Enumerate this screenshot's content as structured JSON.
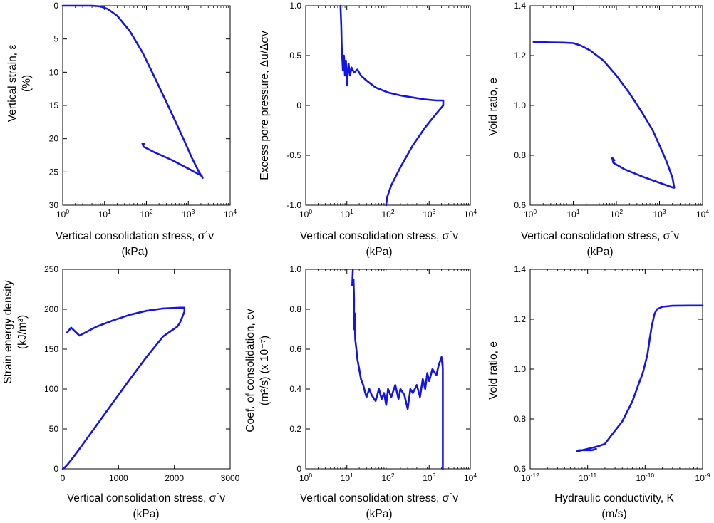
{
  "colors": {
    "series": "#1414e6",
    "axis": "#000000",
    "background": "#ffffff"
  },
  "chart_data": [
    {
      "type": "line",
      "xscale": "log",
      "xlim": [
        1,
        10000
      ],
      "ylim": [
        30,
        0
      ],
      "yinverted": true,
      "ylabel": "Vertical strain, ε",
      "ylabel2": "(%)",
      "xlabel": "Vertical consolidation stress, σ´v",
      "xlabel2": "(kPa)",
      "xticks": [
        1,
        10,
        100,
        1000,
        10000
      ],
      "xtick_labels": [
        {
          "b": "10",
          "e": "0"
        },
        {
          "b": "10",
          "e": "1"
        },
        {
          "b": "10",
          "e": "2"
        },
        {
          "b": "10",
          "e": "3"
        },
        {
          "b": "10",
          "e": "4"
        }
      ],
      "yticks": [
        0,
        5,
        10,
        15,
        20,
        25,
        30
      ],
      "ytick_labels": [
        "0",
        "5",
        "10",
        "15",
        "20",
        "25",
        "30"
      ],
      "series": [
        {
          "x": [
            1,
            2,
            5,
            8,
            12,
            20,
            40,
            80,
            150,
            300,
            500,
            800,
            1200,
            1800,
            2200,
            2100,
            1000,
            400,
            150,
            85,
            80,
            90
          ],
          "y": [
            0,
            0,
            0,
            0.1,
            0.5,
            1.5,
            3.8,
            7,
            10.5,
            14.5,
            17.5,
            20.3,
            22.8,
            25,
            25.9,
            25.6,
            24.5,
            23.2,
            22,
            21.2,
            20.7,
            20.8
          ]
        }
      ]
    },
    {
      "type": "line",
      "xscale": "log",
      "xlim": [
        1,
        10000
      ],
      "ylim": [
        -1,
        1
      ],
      "ylabel": "Excess pore pressure, Δu/Δσv",
      "xlabel": "Vertical consolidation stress, σ´v",
      "xlabel2": "(kPa)",
      "xticks": [
        1,
        10,
        100,
        1000,
        10000
      ],
      "xtick_labels": [
        {
          "b": "10",
          "e": "0"
        },
        {
          "b": "10",
          "e": "1"
        },
        {
          "b": "10",
          "e": "2"
        },
        {
          "b": "10",
          "e": "3"
        },
        {
          "b": "10",
          "e": "4"
        }
      ],
      "yticks": [
        -1,
        -0.5,
        0,
        0.5,
        1
      ],
      "ytick_labels": [
        "-1.0",
        "-0.5",
        "0",
        "0.5",
        "1.0"
      ],
      "series": [
        {
          "x": [
            7,
            7.3,
            7.5,
            7.8,
            8,
            8.5,
            9,
            9.5,
            10,
            11,
            12,
            13,
            15,
            18,
            22,
            30,
            50,
            100,
            200,
            400,
            800,
            1500,
            2200,
            2200,
            1500,
            800,
            400,
            200,
            120,
            95,
            90
          ],
          "y": [
            1.0,
            0.8,
            0.6,
            0.45,
            0.35,
            0.5,
            0.3,
            0.45,
            0.2,
            0.42,
            0.3,
            0.38,
            0.33,
            0.36,
            0.3,
            0.25,
            0.18,
            0.13,
            0.1,
            0.08,
            0.06,
            0.05,
            0.05,
            0.0,
            -0.08,
            -0.22,
            -0.4,
            -0.62,
            -0.8,
            -0.92,
            -1.0
          ]
        }
      ]
    },
    {
      "type": "line",
      "xscale": "log",
      "xlim": [
        1,
        10000
      ],
      "ylim": [
        0.6,
        1.4
      ],
      "ylabel": "Void ratio, e",
      "xlabel": "Vertical consolidation stress, σ´v",
      "xlabel2": "(kPa)",
      "xticks": [
        1,
        10,
        100,
        1000,
        10000
      ],
      "xtick_labels": [
        {
          "b": "10",
          "e": "0"
        },
        {
          "b": "10",
          "e": "1"
        },
        {
          "b": "10",
          "e": "2"
        },
        {
          "b": "10",
          "e": "3"
        },
        {
          "b": "10",
          "e": "4"
        }
      ],
      "yticks": [
        0.6,
        0.8,
        1.0,
        1.2,
        1.4
      ],
      "ytick_labels": [
        "0.6",
        "0.8",
        "1.0",
        "1.2",
        "1.4"
      ],
      "series": [
        {
          "x": [
            1.2,
            3,
            6,
            10,
            15,
            25,
            50,
            100,
            200,
            400,
            700,
            1000,
            1500,
            2000,
            2200,
            2100,
            1000,
            400,
            150,
            85,
            80,
            90
          ],
          "y": [
            1.255,
            1.253,
            1.252,
            1.25,
            1.24,
            1.22,
            1.18,
            1.12,
            1.05,
            0.97,
            0.9,
            0.84,
            0.77,
            0.71,
            0.67,
            0.67,
            0.69,
            0.715,
            0.745,
            0.77,
            0.79,
            0.78
          ]
        }
      ]
    },
    {
      "type": "line",
      "xscale": "linear",
      "xlim": [
        0,
        3000
      ],
      "ylim": [
        0,
        250
      ],
      "ylabel": "Strain energy density",
      "ylabel2": "(kJ/m³)",
      "xlabel": "Vertical consolidation stress, σ´v",
      "xlabel2": "(kPa)",
      "xticks": [
        0,
        1000,
        2000,
        3000
      ],
      "xtick_labels": [
        "0",
        "1000",
        "2000",
        "3000"
      ],
      "yticks": [
        0,
        50,
        100,
        150,
        200,
        250
      ],
      "ytick_labels": [
        "0",
        "50",
        "100",
        "150",
        "200",
        "250"
      ],
      "series": [
        {
          "x": [
            0,
            10,
            40,
            80,
            150,
            300,
            600,
            900,
            1200,
            1500,
            1800,
            2050,
            2100,
            2180,
            2180,
            2100,
            1800,
            1500,
            1200,
            900,
            600,
            300,
            150,
            80
          ],
          "y": [
            0,
            0.5,
            2,
            5,
            11,
            25,
            54,
            83,
            112,
            140,
            166,
            178,
            183,
            197,
            202,
            202,
            201,
            198,
            193,
            186,
            178,
            167,
            177,
            171
          ]
        }
      ]
    },
    {
      "type": "line",
      "xscale": "log",
      "xlim": [
        1,
        10000
      ],
      "ylim": [
        0,
        1
      ],
      "ylabel": "Coef. of consolidation, cv",
      "ylabel2": "(m²/s) (x 10⁻⁷)",
      "xlabel": "Vertical consolidation stress, σ´v",
      "xlabel2": "(kPa)",
      "xticks": [
        1,
        10,
        100,
        1000,
        10000
      ],
      "xtick_labels": [
        {
          "b": "10",
          "e": "0"
        },
        {
          "b": "10",
          "e": "1"
        },
        {
          "b": "10",
          "e": "2"
        },
        {
          "b": "10",
          "e": "3"
        },
        {
          "b": "10",
          "e": "4"
        }
      ],
      "yticks": [
        0,
        0.2,
        0.4,
        0.6,
        0.8,
        1
      ],
      "ytick_labels": [
        "0",
        "0.2",
        "0.4",
        "0.6",
        "0.8",
        "1.0"
      ],
      "series": [
        {
          "x": [
            14,
            13.5,
            14.5,
            15,
            14.8,
            15.5,
            16,
            17,
            18,
            20,
            22,
            25,
            28,
            30,
            35,
            40,
            50,
            60,
            70,
            80,
            90,
            100,
            120,
            150,
            180,
            200,
            250,
            300,
            350,
            400,
            500,
            600,
            700,
            800,
            900,
            1000,
            1200,
            1500,
            1700,
            2000,
            2100,
            2100,
            2150,
            2150
          ],
          "y": [
            1.0,
            0.92,
            0.95,
            0.85,
            0.7,
            0.78,
            0.65,
            0.6,
            0.55,
            0.5,
            0.45,
            0.42,
            0.38,
            0.36,
            0.4,
            0.37,
            0.34,
            0.4,
            0.35,
            0.38,
            0.32,
            0.4,
            0.36,
            0.42,
            0.35,
            0.4,
            0.37,
            0.3,
            0.4,
            0.38,
            0.42,
            0.36,
            0.45,
            0.4,
            0.48,
            0.44,
            0.5,
            0.47,
            0.52,
            0.56,
            0.52,
            0.54,
            0.5,
            0.0
          ]
        }
      ]
    },
    {
      "type": "line",
      "xscale": "log",
      "xlim": [
        1e-12,
        1e-09
      ],
      "ylim": [
        0.6,
        1.4
      ],
      "ylabel": "Void ratio, e",
      "xlabel": "Hydraulic conductivity, K",
      "xlabel2": "(m/s)",
      "xticks": [
        1e-12,
        1e-11,
        1e-10,
        1e-09
      ],
      "xtick_labels": [
        {
          "b": "10",
          "e": "-12"
        },
        {
          "b": "10",
          "e": "-11"
        },
        {
          "b": "10",
          "e": "-10"
        },
        {
          "b": "10",
          "e": "-9"
        }
      ],
      "yticks": [
        0.6,
        0.8,
        1.0,
        1.2,
        1.4
      ],
      "ytick_labels": [
        "0.6",
        "0.8",
        "1.0",
        "1.2",
        "1.4"
      ],
      "series": [
        {
          "x": [
            1e-09,
            6e-10,
            3e-10,
            2e-10,
            1.6e-10,
            1.45e-10,
            1.3e-10,
            1.2e-10,
            1.1e-10,
            1e-10,
            9e-11,
            8e-11,
            6e-11,
            4e-11,
            2.5e-11,
            2e-11,
            1.5e-11,
            1e-11,
            6.5e-12,
            7e-12,
            1.2e-11,
            1.4e-11
          ],
          "y": [
            1.255,
            1.255,
            1.254,
            1.25,
            1.24,
            1.22,
            1.17,
            1.12,
            1.06,
            1.02,
            0.98,
            0.95,
            0.87,
            0.79,
            0.73,
            0.7,
            0.69,
            0.68,
            0.67,
            0.675,
            0.675,
            0.68
          ]
        }
      ]
    }
  ]
}
